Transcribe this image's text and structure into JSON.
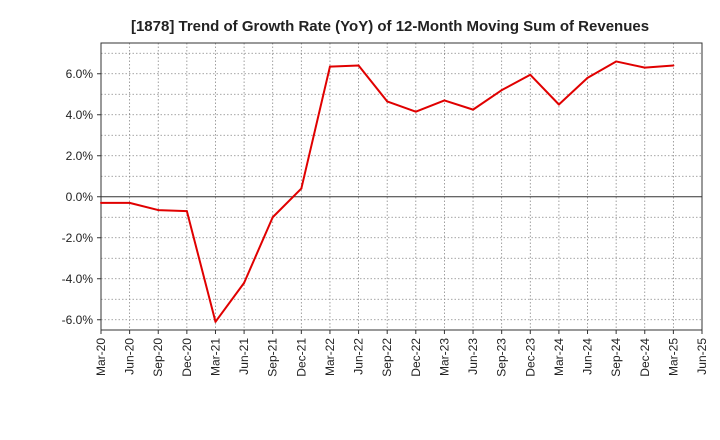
{
  "chart_data": {
    "type": "line",
    "title": "[1878]  Trend of Growth Rate (YoY) of 12-Month Moving Sum of Revenues",
    "xlabel": "",
    "ylabel": "",
    "ylim": [
      -6.5,
      7.5
    ],
    "yticks": [
      -6.0,
      -4.0,
      -2.0,
      0.0,
      2.0,
      4.0,
      6.0
    ],
    "ytick_labels": [
      "-6.0%",
      "-4.0%",
      "-2.0%",
      "0.0%",
      "2.0%",
      "4.0%",
      "6.0%"
    ],
    "x_tick_labels": [
      "Mar-20",
      "Jun-20",
      "Sep-20",
      "Dec-20",
      "Mar-21",
      "Jun-21",
      "Sep-21",
      "Dec-21",
      "Mar-22",
      "Jun-22",
      "Sep-22",
      "Dec-22",
      "Mar-23",
      "Jun-23",
      "Sep-23",
      "Dec-23",
      "Mar-24",
      "Jun-24",
      "Sep-24",
      "Dec-24",
      "Mar-25",
      "Jun-25"
    ],
    "grid": true,
    "color": "#e00000",
    "series": [
      {
        "x": [
          "Mar-20",
          "Jun-20",
          "Sep-20",
          "Dec-20",
          "Mar-21",
          "Jun-21",
          "Sep-21",
          "Dec-21",
          "Mar-22",
          "Jun-22",
          "Sep-22",
          "Dec-22",
          "Mar-23",
          "Jun-23",
          "Sep-23",
          "Dec-23",
          "Mar-24",
          "Jun-24",
          "Sep-24",
          "Dec-24",
          "Mar-25"
        ],
        "values": [
          -0.3,
          -0.3,
          -0.65,
          -0.7,
          -6.1,
          -4.2,
          -1.0,
          0.4,
          6.35,
          6.4,
          4.65,
          4.15,
          4.7,
          4.25,
          5.2,
          5.95,
          4.5,
          5.8,
          6.6,
          6.3,
          6.4
        ]
      }
    ]
  }
}
